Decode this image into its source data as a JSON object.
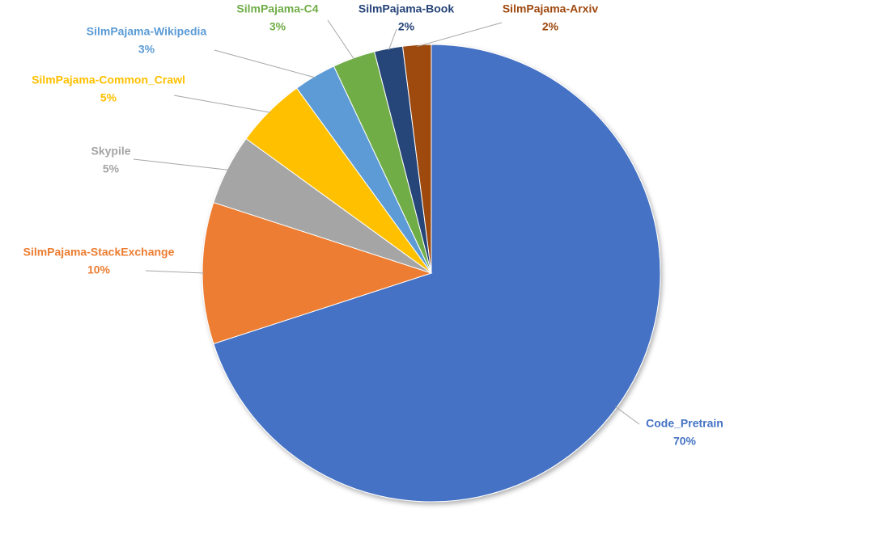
{
  "chart_data": {
    "type": "pie",
    "categories": [
      "Code_Pretrain",
      "SilmPajama-StackExchange",
      "Skypile",
      "SilmPajama-Common_Crawl",
      "SilmPajama-Wikipedia",
      "SilmPajama-C4",
      "SilmPajama-Book",
      "SilmPajama-Arxiv"
    ],
    "values": [
      70,
      10,
      5,
      5,
      3,
      3,
      2,
      2
    ],
    "value_labels": [
      "70%",
      "10%",
      "5%",
      "5%",
      "3%",
      "3%",
      "2%",
      "2%"
    ],
    "colors": [
      "#4472c4",
      "#ed7d31",
      "#a5a5a5",
      "#ffc000",
      "#5b9bd5",
      "#70ad47",
      "#264478",
      "#9e480e"
    ]
  }
}
